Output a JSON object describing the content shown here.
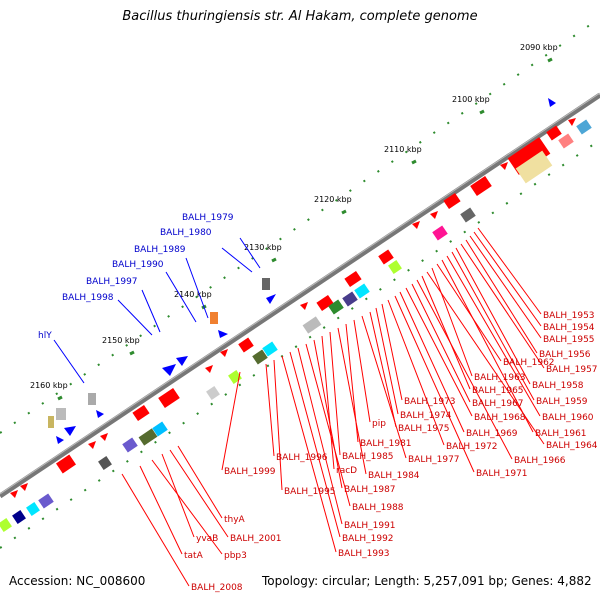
{
  "title": "Bacillus thuringiensis str. Al Hakam, complete genome",
  "accession": "Accession: NC_008600",
  "topology": "Topology: circular; Length: 5,257,091 bp; Genes: 4,882",
  "ticks": [
    "2090 kbp",
    "2100 kbp",
    "2110 kbp",
    "2120 kbp",
    "2130 kbp",
    "2140 kbp",
    "2150 kbp",
    "2160 kbp"
  ],
  "top_labels": [
    "BALH_1979",
    "BALH_1980",
    "BALH_1989",
    "BALH_1990",
    "BALH_1997",
    "BALH_1998",
    "hlY"
  ],
  "right_labels": [
    "BALH_1953",
    "BALH_1954",
    "BALH_1955",
    "BALH_1956",
    "BALH_1957",
    "BALH_1958",
    "BALH_1959",
    "BALH_1960",
    "BALH_1961",
    "BALH_1962",
    "BALH_1963",
    "BALH_1964",
    "BALH_1965",
    "BALH_1966",
    "BALH_1967",
    "BALH_1968",
    "BALH_1969",
    "BALH_1971",
    "BALH_1972",
    "BALH_1973",
    "BALH_1974",
    "BALH_1975",
    "BALH_1977",
    "pip",
    "BALH_1981",
    "BALH_1984",
    "BALH_1985",
    "racD",
    "BALH_1987",
    "BALH_1988",
    "BALH_1991",
    "BALH_1992",
    "BALH_1993",
    "BALH_1995",
    "BALH_1996",
    "BALH_1999",
    "thyA",
    "BALH_2001",
    "yvaB",
    "pbp3",
    "tatA",
    "BALH_2008"
  ],
  "colors": {
    "forward": "#0000ff",
    "reverse": "#ff0000",
    "backbone": "#777777",
    "tick": "#2e8b2e"
  }
}
